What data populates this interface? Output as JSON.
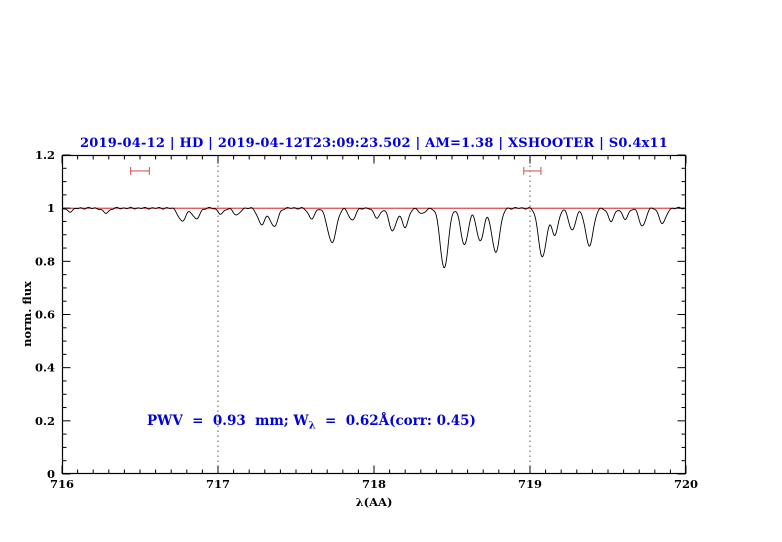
{
  "chart_data": {
    "type": "line",
    "title": "2019-04-12 | HD | 2019-04-12T23:09:23.502 | AM=1.38 | XSHOOTER | S0.4x11",
    "title_color": "#0000dd",
    "xlabel": "λ(AA)",
    "ylabel": "norm. flux",
    "xlim": [
      716,
      720
    ],
    "ylim": [
      0,
      1.2
    ],
    "x_major_ticks": [
      716,
      717,
      718,
      719,
      720
    ],
    "x_tick_labels": [
      "716",
      "717",
      "718",
      "719",
      "720"
    ],
    "x_minor_step": 0.1,
    "y_major_ticks": [
      0,
      0.2,
      0.4,
      0.6,
      0.8,
      1,
      1.2
    ],
    "y_tick_labels": [
      "0",
      "0.2",
      "0.4",
      "0.6",
      "0.8",
      "1",
      "1.2"
    ],
    "y_minor_step": 0.05,
    "grid": false,
    "spectrum_color": "#000000",
    "continuum": {
      "y": 1.0,
      "color": "#cc0000"
    },
    "dotted_vlines": [
      717,
      719
    ],
    "marker_color": "#d06060",
    "range_markers": [
      {
        "x1": 716.44,
        "x2": 716.56,
        "y": 1.14
      },
      {
        "x1": 718.96,
        "x2": 719.07,
        "y": 1.14
      }
    ],
    "model": "gaussian_absorption_on_unit_continuum",
    "sample_step": 0.004,
    "absorption_lines": [
      [
        716.05,
        0.012,
        0.05
      ],
      [
        716.28,
        0.018,
        0.05
      ],
      [
        716.77,
        0.05,
        0.055
      ],
      [
        716.86,
        0.042,
        0.05
      ],
      [
        717.02,
        0.022,
        0.045
      ],
      [
        717.12,
        0.028,
        0.045
      ],
      [
        717.28,
        0.062,
        0.055
      ],
      [
        717.36,
        0.07,
        0.055
      ],
      [
        717.6,
        0.038,
        0.05
      ],
      [
        717.73,
        0.13,
        0.065
      ],
      [
        717.86,
        0.045,
        0.05
      ],
      [
        718.02,
        0.035,
        0.05
      ],
      [
        718.12,
        0.085,
        0.055
      ],
      [
        718.2,
        0.07,
        0.05
      ],
      [
        718.31,
        0.022,
        0.045
      ],
      [
        718.45,
        0.225,
        0.06
      ],
      [
        718.58,
        0.14,
        0.055
      ],
      [
        718.68,
        0.125,
        0.055
      ],
      [
        718.78,
        0.165,
        0.06
      ],
      [
        719.08,
        0.185,
        0.06
      ],
      [
        719.16,
        0.1,
        0.05
      ],
      [
        719.27,
        0.085,
        0.05
      ],
      [
        719.38,
        0.14,
        0.06
      ],
      [
        719.52,
        0.05,
        0.045
      ],
      [
        719.61,
        0.042,
        0.045
      ],
      [
        719.72,
        0.068,
        0.05
      ],
      [
        719.85,
        0.058,
        0.05
      ]
    ],
    "annotation": {
      "pre": "PWV  =  0.93  mm; W",
      "sub": "λ",
      "post": "  =  0.62Å(corr: 0.45)",
      "color": "#0000dd"
    }
  }
}
